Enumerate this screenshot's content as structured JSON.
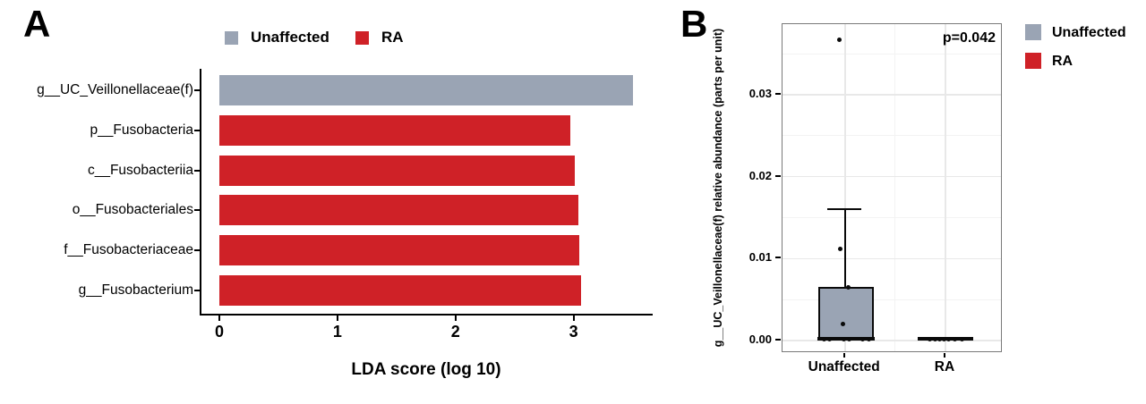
{
  "panelA": {
    "label": "A",
    "xlabel": "LDA score (log 10)",
    "legend": [
      {
        "label": "Unaffected",
        "color": "#9aa4b4"
      },
      {
        "label": "RA",
        "color": "#cf2127"
      }
    ]
  },
  "panelB": {
    "label": "B",
    "annotation": "p=0.042",
    "ylabel": "g__UC_Veillonellaceae(f) relative abundance (parts per unit)",
    "legend": [
      {
        "label": "Unaffected",
        "color": "#9aa4b4"
      },
      {
        "label": "RA",
        "color": "#cf2127"
      }
    ]
  },
  "colors": {
    "unaffected_gray": "#9aa4b4",
    "ra_red": "#cf2127",
    "axis_black": "#000000",
    "panel_border": "#7a7a7a",
    "grid_major": "#e8e8e8",
    "grid_minor": "#f3f3f3"
  },
  "chart_data": [
    {
      "type": "bar",
      "orientation": "horizontal",
      "title": "",
      "xlabel": "LDA score (log 10)",
      "categories": [
        "g__UC_Veillonellaceae(f)",
        "p__Fusobacteria",
        "c__Fusobacteriia",
        "o__Fusobacteriales",
        "f__Fusobacteriaceae",
        "g__Fusobacterium"
      ],
      "values": [
        3.5,
        2.97,
        3.01,
        3.04,
        3.05,
        3.06
      ],
      "groups": [
        "Unaffected",
        "RA",
        "RA",
        "RA",
        "RA",
        "RA"
      ],
      "xticks": [
        0,
        1,
        2,
        3
      ],
      "xlim": [
        0,
        3.66
      ],
      "legend": [
        "Unaffected",
        "RA"
      ],
      "legend_position": "top",
      "grid": false
    },
    {
      "type": "boxplot",
      "title": "",
      "ylabel": "g__UC_Veillonellaceae(f) relative abundance (parts per unit)",
      "categories": [
        "Unaffected",
        "RA"
      ],
      "yticks": [
        0.0,
        0.01,
        0.02,
        0.03
      ],
      "ytick_labels": [
        "0.00",
        "0.01",
        "0.02",
        "0.03"
      ],
      "ylim": [
        -0.0015,
        0.0386
      ],
      "grid": true,
      "annotation": "p=0.042",
      "legend_position": "right",
      "boxes": [
        {
          "category": "Unaffected",
          "q1": 0.0,
          "median": 0.0002,
          "q3": 0.0065,
          "whisker_low": 0.0,
          "whisker_high": 0.016,
          "outliers": [
            0.0367
          ],
          "points": [
            {
              "dx": -6,
              "v": 0.0367
            },
            {
              "dx": -5,
              "v": 0.0112
            },
            {
              "dx": 4,
              "v": 0.0065
            },
            {
              "dx": -2,
              "v": 0.002
            },
            {
              "dx": -23,
              "v": 0.0002
            },
            {
              "dx": -17,
              "v": 0.0002
            },
            {
              "dx": -1,
              "v": 0.0002
            },
            {
              "dx": 5,
              "v": 0.0002
            },
            {
              "dx": 20,
              "v": 0.0002
            },
            {
              "dx": 27,
              "v": 0.0002
            }
          ]
        },
        {
          "category": "RA",
          "q1": 0.0,
          "median": 0.0002,
          "q3": 0.0,
          "whisker_low": 0.0,
          "whisker_high": 0.0,
          "outliers": [],
          "points": [
            {
              "dx": -18,
              "v": 0.0002
            },
            {
              "dx": -12,
              "v": 0.0002
            },
            {
              "dx": -7,
              "v": 0.0002
            },
            {
              "dx": -2,
              "v": 0.0002
            },
            {
              "dx": 3,
              "v": 0.0002
            },
            {
              "dx": 10,
              "v": 0.0002
            },
            {
              "dx": 18,
              "v": 0.0002
            }
          ]
        }
      ]
    }
  ]
}
